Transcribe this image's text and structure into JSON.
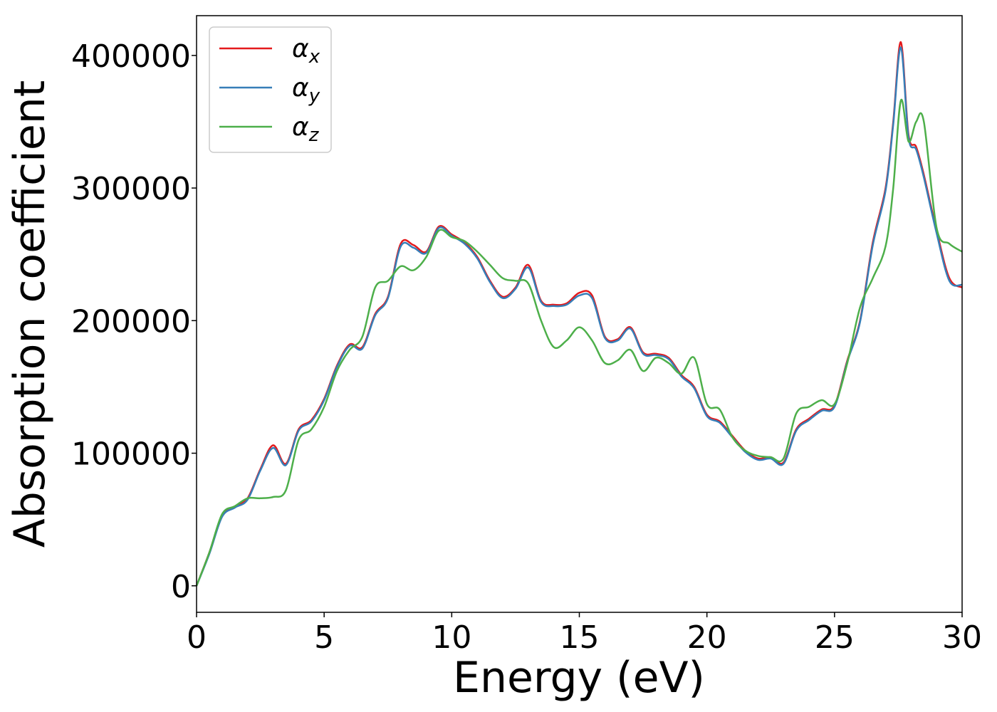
{
  "chart_data": {
    "type": "line",
    "xlabel": "Energy (eV)",
    "ylabel": "Absorption coefficient",
    "xlim": [
      0,
      30
    ],
    "ylim": [
      -20000,
      430000
    ],
    "xticks": [
      0,
      5,
      10,
      15,
      20,
      25,
      30
    ],
    "xtick_labels": [
      "0",
      "5",
      "10",
      "15",
      "20",
      "25",
      "30"
    ],
    "yticks": [
      0,
      100000,
      200000,
      300000,
      400000
    ],
    "ytick_labels": [
      "0",
      "100000",
      "200000",
      "300000",
      "400000"
    ],
    "grid": false,
    "legend_position": "top-left",
    "series": [
      {
        "name": "α",
        "name_sub": "x",
        "color": "#e41a1c",
        "x": [
          0,
          0.5,
          1,
          1.5,
          2,
          2.5,
          3,
          3.5,
          4,
          4.5,
          5,
          5.5,
          6,
          6.5,
          7,
          7.5,
          8,
          8.5,
          9,
          9.5,
          10,
          10.5,
          11,
          11.5,
          12,
          12.5,
          13,
          13.5,
          14,
          14.5,
          15,
          15.5,
          16,
          16.5,
          17,
          17.5,
          18,
          18.5,
          19,
          19.5,
          20,
          20.5,
          21,
          21.5,
          22,
          22.5,
          23,
          23.5,
          24,
          24.5,
          25,
          25.5,
          26,
          26.5,
          27,
          27.3,
          27.6,
          27.9,
          28.2,
          28.5,
          29,
          29.5,
          30
        ],
        "values": [
          0,
          25000,
          53000,
          60000,
          66000,
          88000,
          106000,
          92000,
          118000,
          125000,
          141000,
          166000,
          182000,
          180000,
          205000,
          218000,
          258000,
          257000,
          252000,
          271000,
          265000,
          259000,
          248000,
          230000,
          218000,
          225000,
          242000,
          215000,
          212000,
          213000,
          221000,
          219000,
          188000,
          186000,
          195000,
          176000,
          175000,
          172000,
          159000,
          150000,
          129000,
          124000,
          113000,
          102000,
          96000,
          97000,
          93000,
          118000,
          126000,
          133000,
          136000,
          170000,
          200000,
          259000,
          300000,
          350000,
          410000,
          340000,
          331000,
          310000,
          268000,
          232000,
          225000
        ]
      },
      {
        "name": "α",
        "name_sub": "y",
        "color": "#377eb8",
        "x": [
          0,
          0.5,
          1,
          1.5,
          2,
          2.5,
          3,
          3.5,
          4,
          4.5,
          5,
          5.5,
          6,
          6.5,
          7,
          7.5,
          8,
          8.5,
          9,
          9.5,
          10,
          10.5,
          11,
          11.5,
          12,
          12.5,
          13,
          13.5,
          14,
          14.5,
          15,
          15.5,
          16,
          16.5,
          17,
          17.5,
          18,
          18.5,
          19,
          19.5,
          20,
          20.5,
          21,
          21.5,
          22,
          22.5,
          23,
          23.5,
          24,
          24.5,
          25,
          25.5,
          26,
          26.5,
          27,
          27.3,
          27.6,
          27.9,
          28.2,
          28.5,
          29,
          29.5,
          30
        ],
        "values": [
          0,
          24000,
          52000,
          59000,
          65000,
          87000,
          104000,
          91000,
          117000,
          124000,
          140000,
          165000,
          181000,
          179000,
          204000,
          217000,
          256000,
          255000,
          251000,
          270000,
          264000,
          258000,
          247000,
          229000,
          217000,
          224000,
          240000,
          214000,
          211000,
          212000,
          219000,
          217000,
          187000,
          185000,
          194000,
          175000,
          174000,
          171000,
          158000,
          149000,
          128000,
          123000,
          112000,
          101000,
          95000,
          96000,
          92000,
          117000,
          125000,
          132000,
          135000,
          169000,
          199000,
          257000,
          298000,
          348000,
          406000,
          338000,
          329000,
          308000,
          266000,
          230000,
          227000
        ]
      },
      {
        "name": "α",
        "name_sub": "z",
        "color": "#4daf4a",
        "x": [
          0,
          0.5,
          1,
          1.5,
          2,
          2.5,
          3,
          3.5,
          4,
          4.5,
          5,
          5.5,
          6,
          6.5,
          7,
          7.5,
          8,
          8.5,
          9,
          9.5,
          10,
          10.5,
          11,
          11.5,
          12,
          12.5,
          13,
          13.5,
          14,
          14.5,
          15,
          15.5,
          16,
          16.5,
          17,
          17.5,
          18,
          18.5,
          19,
          19.5,
          20,
          20.5,
          21,
          21.5,
          22,
          22.5,
          23,
          23.5,
          24,
          24.5,
          25,
          25.5,
          26,
          26.5,
          27,
          27.3,
          27.6,
          27.9,
          28.2,
          28.5,
          29,
          29.5,
          30
        ],
        "values": [
          0,
          25000,
          54000,
          60000,
          66000,
          66000,
          67000,
          72000,
          110000,
          118000,
          135000,
          162000,
          178000,
          188000,
          225000,
          230000,
          241000,
          238000,
          248000,
          268000,
          263000,
          260000,
          252000,
          242000,
          232000,
          230000,
          228000,
          200000,
          180000,
          185000,
          195000,
          185000,
          168000,
          170000,
          178000,
          162000,
          172000,
          168000,
          160000,
          172000,
          137000,
          133000,
          112000,
          102000,
          98000,
          97000,
          96000,
          130000,
          135000,
          140000,
          137000,
          168000,
          210000,
          232000,
          256000,
          300000,
          366000,
          335000,
          350000,
          350000,
          270000,
          258000,
          252000
        ]
      }
    ]
  }
}
